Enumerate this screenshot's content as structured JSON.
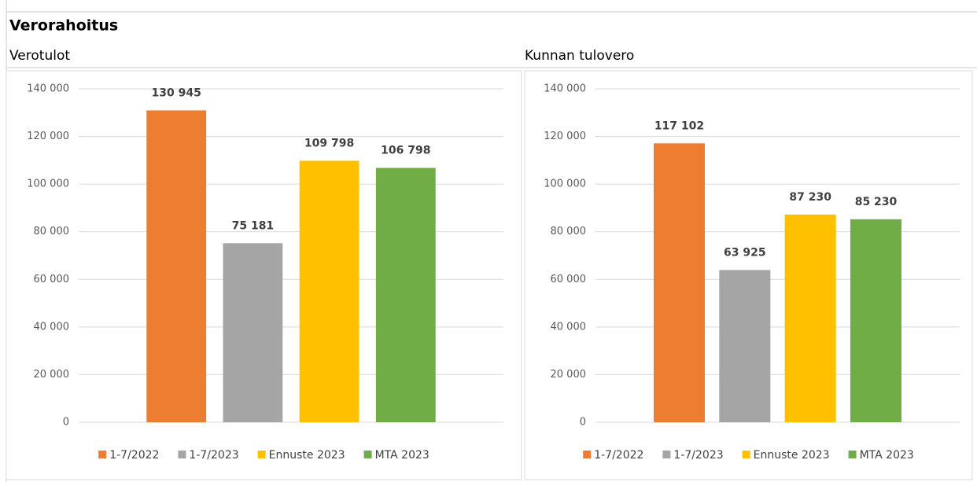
{
  "title": "Verorahoitus",
  "chart_data": [
    {
      "type": "bar",
      "title": "Verotulot",
      "series": [
        {
          "name": "1-7/2022",
          "color": "#ed7d31",
          "values": [
            130945
          ],
          "value_labels": [
            "130 945"
          ]
        },
        {
          "name": "1-7/2023",
          "color": "#a5a5a5",
          "values": [
            75181
          ],
          "value_labels": [
            "75 181"
          ]
        },
        {
          "name": "Ennuste 2023",
          "color": "#ffc000",
          "values": [
            109798
          ],
          "value_labels": [
            "109 798"
          ]
        },
        {
          "name": "MTA 2023",
          "color": "#70ad47",
          "values": [
            106798
          ],
          "value_labels": [
            "106 798"
          ]
        }
      ],
      "ylim": [
        0,
        140000
      ],
      "yticks": [
        0,
        {
          "value": 20000,
          "label": "20 000"
        },
        {
          "value": 40000,
          "label": "40 000"
        },
        {
          "value": 60000,
          "label": "60 000"
        },
        {
          "value": 80000,
          "label": "80 000"
        },
        {
          "value": 100000,
          "label": "100 000"
        },
        {
          "value": 120000,
          "label": "120 000"
        },
        {
          "value": 140000,
          "label": "140 000"
        }
      ],
      "grid": true,
      "legend": "bottom"
    },
    {
      "type": "bar",
      "title": "Kunnan tulovero",
      "series": [
        {
          "name": "1-7/2022",
          "color": "#ed7d31",
          "values": [
            117102
          ],
          "value_labels": [
            "117 102"
          ]
        },
        {
          "name": "1-7/2023",
          "color": "#a5a5a5",
          "values": [
            63925
          ],
          "value_labels": [
            "63 925"
          ]
        },
        {
          "name": "Ennuste 2023",
          "color": "#ffc000",
          "values": [
            87230
          ],
          "value_labels": [
            "87 230"
          ]
        },
        {
          "name": "MTA 2023",
          "color": "#70ad47",
          "values": [
            85230
          ],
          "value_labels": [
            "85 230"
          ]
        }
      ],
      "ylim": [
        0,
        140000
      ],
      "yticks": [
        0,
        {
          "value": 20000,
          "label": "20 000"
        },
        {
          "value": 40000,
          "label": "40 000"
        },
        {
          "value": 60000,
          "label": "60 000"
        },
        {
          "value": 80000,
          "label": "80 000"
        },
        {
          "value": 100000,
          "label": "100 000"
        },
        {
          "value": 120000,
          "label": "120 000"
        },
        {
          "value": 140000,
          "label": "140 000"
        }
      ],
      "grid": true,
      "legend": "bottom"
    }
  ]
}
